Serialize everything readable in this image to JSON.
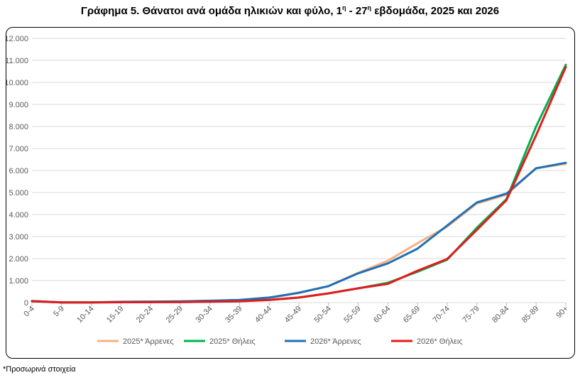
{
  "page": {
    "title_main": "Γράφημα 5. Θάνατοι ανά ομάδα ηλικιών και φύλο, 1",
    "title_sup1": "η",
    "title_mid": " - 27",
    "title_sup2": "η",
    "title_end": " εβδομάδα, 2025 και 2026",
    "footnote": "*Προσωρινά στοιχεία"
  },
  "chart_data": {
    "type": "line",
    "title": "Γράφημα 5. Θάνατοι ανά ομάδα ηλικιών και φύλο, 1η - 27η εβδομάδα, 2025 και 2026",
    "xlabel": "",
    "ylabel": "",
    "ylim": [
      0,
      12000
    ],
    "yticks": [
      0,
      1000,
      2000,
      3000,
      4000,
      5000,
      6000,
      7000,
      8000,
      9000,
      10000,
      11000,
      12000
    ],
    "ytick_labels": [
      "0",
      "1.000",
      "2.000",
      "3.000",
      "4.000",
      "5.000",
      "6.000",
      "7.000",
      "8.000",
      "9.000",
      "10.000",
      "11.000",
      "12.000"
    ],
    "grid": true,
    "legend_position": "bottom",
    "categories": [
      "0-4",
      "5-9",
      "10-14",
      "15-19",
      "20-24",
      "25-29",
      "30-34",
      "35-39",
      "40-44",
      "45-49",
      "50-54",
      "55-59",
      "60-64",
      "65-69",
      "70-74",
      "75-79",
      "80-84",
      "85-89",
      "90+"
    ],
    "series": [
      {
        "name": "2025* Άρρενες",
        "color": "#F4B183",
        "values": [
          70,
          5,
          10,
          30,
          40,
          50,
          70,
          100,
          200,
          440,
          750,
          1350,
          1900,
          2700,
          3450,
          4500,
          4900,
          6100,
          6300
        ]
      },
      {
        "name": "2025* Θήλεις",
        "color": "#00B050",
        "values": [
          60,
          5,
          8,
          15,
          20,
          25,
          40,
          60,
          120,
          230,
          420,
          650,
          900,
          1400,
          1950,
          3400,
          4700,
          8000,
          10800
        ]
      },
      {
        "name": "2026* Άρρενες",
        "color": "#1F6FB5",
        "values": [
          70,
          5,
          10,
          35,
          45,
          55,
          85,
          120,
          230,
          450,
          750,
          1330,
          1780,
          2450,
          3500,
          4550,
          4950,
          6100,
          6350
        ]
      },
      {
        "name": "2026* Θήλεις",
        "color": "#E31A1C",
        "values": [
          60,
          5,
          8,
          15,
          20,
          25,
          40,
          60,
          120,
          230,
          420,
          650,
          850,
          1450,
          1980,
          3300,
          4650,
          7600,
          10700
        ]
      }
    ]
  }
}
